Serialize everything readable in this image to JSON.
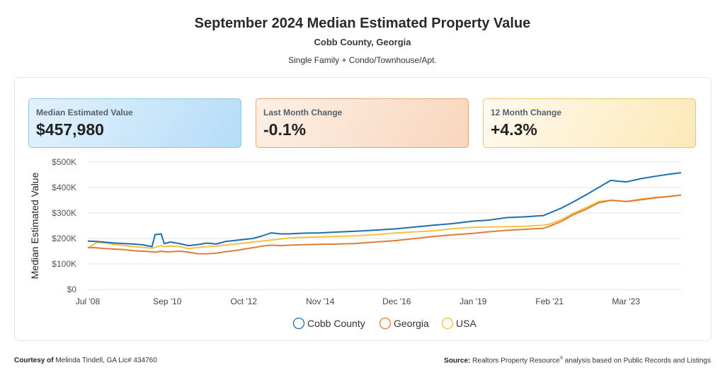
{
  "header": {
    "title": "September 2024 Median Estimated Property Value",
    "location": "Cobb County, Georgia",
    "property_types": "Single Family + Condo/Townhouse/Apt."
  },
  "stats": [
    {
      "label": "Median Estimated Value",
      "value": "$457,980",
      "color": "#b6dcf8"
    },
    {
      "label": "Last Month Change",
      "value": "-0.1%",
      "color": "#f8d6bd"
    },
    {
      "label": "12 Month Change",
      "value": "+4.3%",
      "color": "#fde8b6"
    }
  ],
  "footer": {
    "courtesy_label": "Courtesy of",
    "courtesy_text": "Melinda Tindell, GA Lic# 434760",
    "source_label": "Source:",
    "source_text_pre": "Realtors Property Resource",
    "source_mark": "®",
    "source_text_post": " analysis based on Public Records and Listings"
  },
  "chart_data": {
    "type": "line",
    "title": "September 2024 Median Estimated Property Value",
    "xlabel": "",
    "ylabel": "Median Estimated Value",
    "ylim": [
      0,
      500000
    ],
    "yticks": [
      0,
      100000,
      200000,
      300000,
      400000,
      500000
    ],
    "ytick_labels": [
      "$0",
      "$100K",
      "$200K",
      "$300K",
      "$400K",
      "$500K"
    ],
    "xlim": [
      "2008-07",
      "2024-09"
    ],
    "xticks": [
      "2008-07",
      "2010-09",
      "2012-10",
      "2014-11",
      "2016-12",
      "2019-01",
      "2021-02",
      "2023-03"
    ],
    "xtick_labels": [
      "Jul '08",
      "Sep '10",
      "Oct '12",
      "Nov '14",
      "Dec '16",
      "Jan '19",
      "Feb '21",
      "Mar '23"
    ],
    "grid": true,
    "legend_position": "bottom-center",
    "x": [
      "2008-07",
      "2008-10",
      "2009-01",
      "2009-04",
      "2009-07",
      "2009-10",
      "2010-01",
      "2010-04",
      "2010-05",
      "2010-07",
      "2010-08",
      "2010-10",
      "2011-01",
      "2011-04",
      "2011-07",
      "2011-10",
      "2012-01",
      "2012-04",
      "2012-07",
      "2012-10",
      "2013-01",
      "2013-04",
      "2013-07",
      "2013-10",
      "2014-01",
      "2014-04",
      "2014-07",
      "2014-11",
      "2015-04",
      "2015-10",
      "2016-04",
      "2016-12",
      "2017-06",
      "2017-12",
      "2018-06",
      "2019-01",
      "2019-06",
      "2019-12",
      "2020-06",
      "2020-12",
      "2021-02",
      "2021-06",
      "2021-10",
      "2022-02",
      "2022-06",
      "2022-10",
      "2023-03",
      "2023-08",
      "2024-01",
      "2024-05",
      "2024-09"
    ],
    "series": [
      {
        "name": "Cobb County",
        "color": "#1f6fae",
        "values": [
          190000,
          188000,
          185000,
          182000,
          180000,
          178000,
          175000,
          168000,
          215000,
          218000,
          180000,
          186000,
          180000,
          172000,
          176000,
          182000,
          178000,
          188000,
          192000,
          196000,
          200000,
          210000,
          222000,
          218000,
          218000,
          220000,
          221000,
          222000,
          225000,
          228000,
          232000,
          238000,
          245000,
          252000,
          258000,
          268000,
          272000,
          282000,
          285000,
          290000,
          300000,
          320000,
          345000,
          372000,
          400000,
          428000,
          422000,
          435000,
          445000,
          452000,
          458000
        ]
      },
      {
        "name": "Georgia",
        "color": "#e07b39",
        "values": [
          165000,
          163000,
          160000,
          158000,
          156000,
          152000,
          150000,
          148000,
          146000,
          150000,
          148000,
          148000,
          150000,
          146000,
          140000,
          140000,
          142000,
          148000,
          152000,
          158000,
          164000,
          170000,
          174000,
          172000,
          174000,
          175000,
          176000,
          177000,
          178000,
          180000,
          185000,
          192000,
          200000,
          208000,
          214000,
          220000,
          226000,
          232000,
          236000,
          240000,
          248000,
          268000,
          295000,
          315000,
          340000,
          350000,
          345000,
          352000,
          360000,
          365000,
          370000
        ]
      },
      {
        "name": "USA",
        "color": "#f5c242",
        "values": [
          162000,
          185000,
          182000,
          176000,
          172000,
          168000,
          165000,
          162000,
          165000,
          172000,
          168000,
          170000,
          168000,
          160000,
          165000,
          168000,
          170000,
          174000,
          178000,
          182000,
          186000,
          190000,
          194000,
          198000,
          202000,
          204000,
          205000,
          206000,
          208000,
          210000,
          214000,
          222000,
          226000,
          230000,
          238000,
          244000,
          245000,
          246000,
          248000,
          252000,
          256000,
          275000,
          300000,
          322000,
          345000,
          350000,
          345000,
          355000,
          362000,
          365000,
          370000
        ]
      }
    ]
  }
}
